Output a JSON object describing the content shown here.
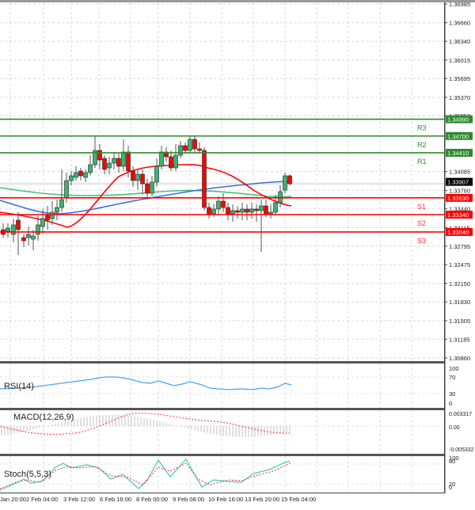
{
  "chart_data": [
    {
      "type": "candlestick",
      "title": "",
      "panel": "price",
      "ylim": [
        1.3086,
        1.36985
      ],
      "y_ticks": [
        "1.36985",
        "1.36660",
        "1.36340",
        "1.36015",
        "1.35695",
        "1.35370",
        "1.35050",
        "1.34085",
        "1.33760",
        "1.33440",
        "1.33115",
        "1.32795",
        "1.32475",
        "1.32150",
        "1.31830",
        "1.31505",
        "1.31185",
        "1.30860"
      ],
      "current_price": "1.33907",
      "levels": [
        {
          "name": "R3",
          "value": "1.34990",
          "color": "#2e8b2e"
        },
        {
          "name": "R2",
          "value": "1.34700",
          "color": "#2e8b2e"
        },
        {
          "name": "R1",
          "value": "1.34410",
          "color": "#2e8b2e"
        },
        {
          "name": "S1",
          "value": "1.33630",
          "color": "#ff0000"
        },
        {
          "name": "S2",
          "value": "1.33340",
          "color": "#ff0000"
        },
        {
          "name": "S3",
          "value": "1.33040",
          "color": "#ff0000"
        }
      ],
      "moving_averages": [
        {
          "name": "MA fast",
          "color": "#ff0000"
        },
        {
          "name": "MA mid",
          "color": "#3a6fe0"
        },
        {
          "name": "MA slow",
          "color": "#4cbf7a"
        }
      ]
    },
    {
      "type": "line",
      "panel": "rsi",
      "title": "RSI(14)",
      "y_ticks": [
        "100",
        "70",
        "30",
        "0"
      ],
      "ylim": [
        0,
        100
      ],
      "color": "#4aa3f0"
    },
    {
      "type": "bar",
      "panel": "macd",
      "title": "MACD(12,26,9)",
      "y_ticks": [
        "0.003317",
        "0.00",
        "-0.005332"
      ],
      "ylim": [
        -0.005332,
        0.003317
      ],
      "signal_color": "#ff0000",
      "histogram_color": "#c0c0c0"
    },
    {
      "type": "line",
      "panel": "stoch",
      "title": "Stoch(5,5,3)",
      "y_ticks": [
        "100",
        "80",
        "20",
        "0"
      ],
      "ylim": [
        0,
        100
      ],
      "main_color": "#40c8c0",
      "signal_color": "#ff0000"
    }
  ],
  "x_axis": {
    "labels": [
      "Jan 20:00",
      "2 Feb 04:00",
      "3 Feb 12:00",
      "6 Feb 16:00",
      "8 Feb 00:00",
      "9 Feb 08:00",
      "10 Feb 16:00",
      "13 Feb 20:00",
      "15 Feb 04:00"
    ]
  }
}
